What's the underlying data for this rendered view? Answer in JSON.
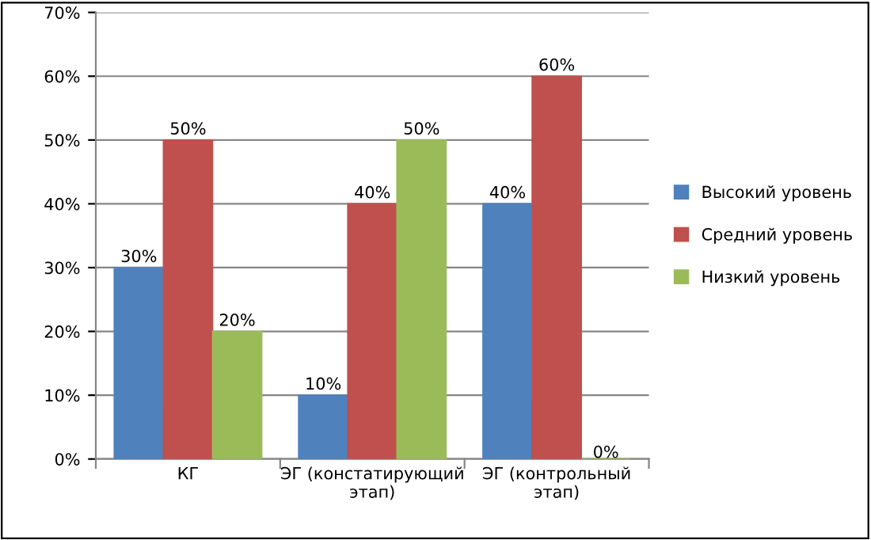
{
  "chart_data": {
    "type": "bar",
    "categories": [
      "КГ",
      "ЭГ (констатирующий\nэтап)",
      "ЭГ (контрольный\nэтап)"
    ],
    "series": [
      {
        "name": "Высокий уровень",
        "color": "#4f81bd",
        "values": [
          30,
          10,
          40
        ],
        "value_labels": [
          "30%",
          "10%",
          "40%"
        ]
      },
      {
        "name": "Средний уровень",
        "color": "#c0504d",
        "values": [
          50,
          40,
          60
        ],
        "value_labels": [
          "50%",
          "40%",
          "60%"
        ]
      },
      {
        "name": "Низкий уровень",
        "color": "#9bbb59",
        "values": [
          20,
          50,
          0
        ],
        "value_labels": [
          "20%",
          "50%",
          "0%"
        ]
      }
    ],
    "ylim": [
      0,
      70
    ],
    "yticks": [
      {
        "value": 0,
        "label": "0%"
      },
      {
        "value": 10,
        "label": "10%"
      },
      {
        "value": 20,
        "label": "20%"
      },
      {
        "value": 30,
        "label": "30%"
      },
      {
        "value": 40,
        "label": "40%"
      },
      {
        "value": 50,
        "label": "50%"
      },
      {
        "value": 60,
        "label": "60%"
      },
      {
        "value": 70,
        "label": "70%"
      }
    ],
    "grid": "y",
    "legend": "right"
  }
}
